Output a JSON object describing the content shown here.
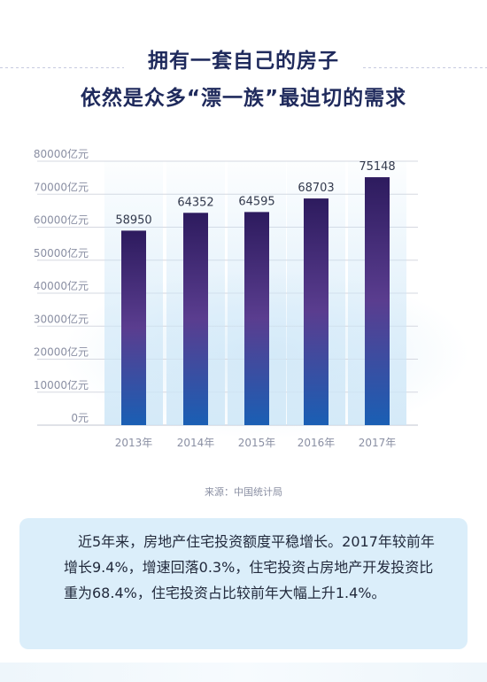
{
  "title": {
    "line1": "拥有一套自己的房子",
    "line2": "依然是众多“漂一族”最迫切的需求"
  },
  "chart_data": {
    "type": "bar",
    "categories": [
      "2013年",
      "2014年",
      "2015年",
      "2016年",
      "2017年"
    ],
    "values": [
      58950,
      64352,
      64595,
      68703,
      75148
    ],
    "ylim": [
      0,
      80000
    ],
    "yticks": [
      "0元",
      "10000亿元",
      "20000亿元",
      "30000亿元",
      "40000亿元",
      "50000亿元",
      "60000亿元",
      "70000亿元",
      "80000亿元"
    ],
    "grid": true,
    "colors": {
      "bar_top": "#2d1b5e",
      "bar_mid": "#5a3d8f",
      "bar_bottom": "#1a5fb4",
      "grid": "#d5d8e0"
    }
  },
  "source": "来源：中国统计局",
  "note": "近5年来，房地产住宅投资额度平稳增长。2017年较前年增长9.4%，增速回落0.3%，住宅投资占房地产开发投资比重为68.4%，住宅投资占比较前年大幅上升1.4%。"
}
